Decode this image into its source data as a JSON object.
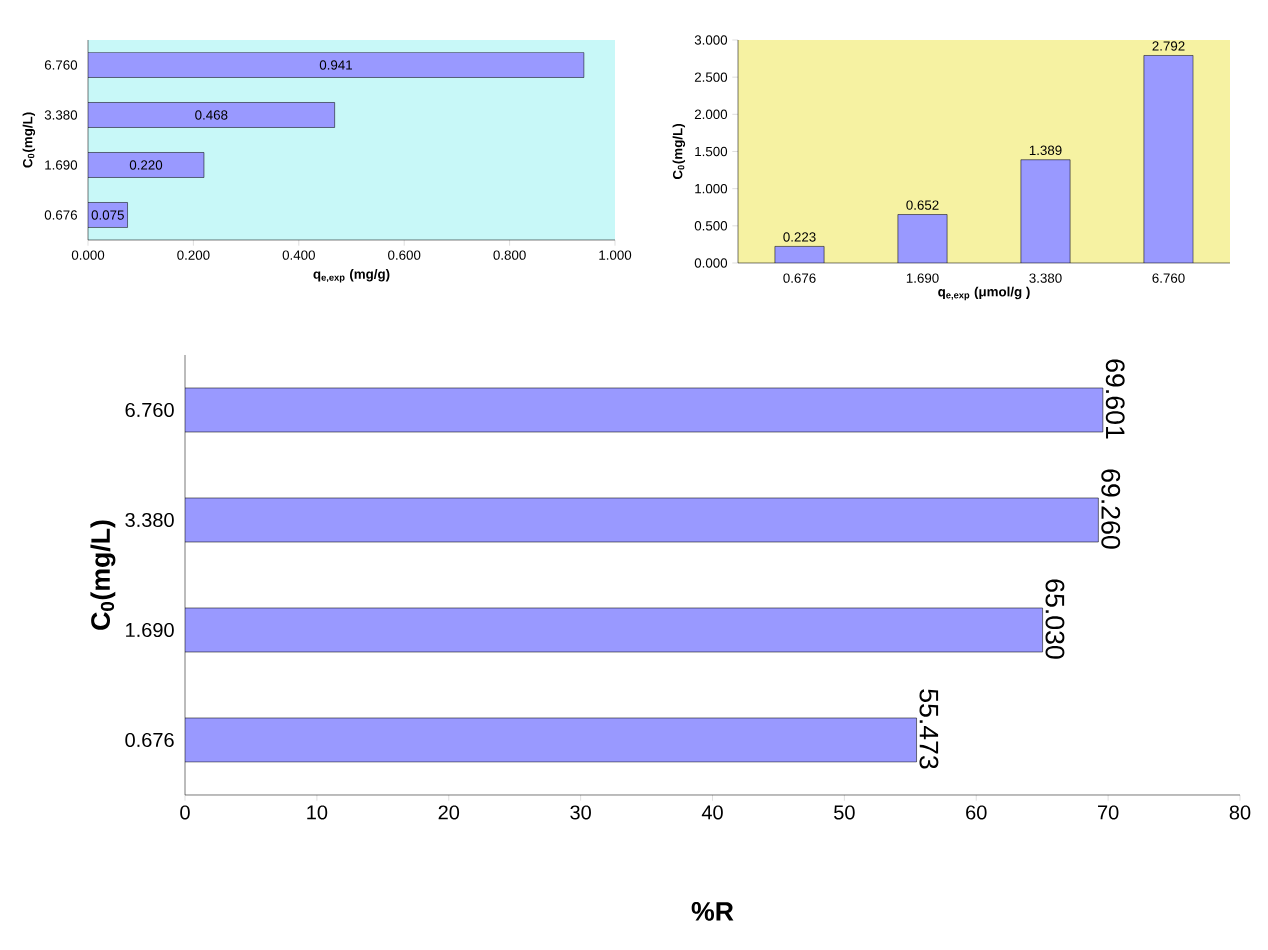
{
  "chart_data": [
    {
      "type": "bar",
      "orientation": "horizontal",
      "categories": [
        "6.760",
        "3.380",
        "1.690",
        "0.676"
      ],
      "values": [
        0.941,
        0.468,
        0.22,
        0.075
      ],
      "value_labels": [
        "0.941",
        "0.468",
        "0.220",
        "0.075"
      ],
      "color": "#9999ff",
      "xlim": [
        0,
        1
      ],
      "xticks": [
        {
          "value": 0,
          "label": "0.000"
        },
        {
          "value": 0.2,
          "label": "0.200"
        },
        {
          "value": 0.4,
          "label": "0.400"
        },
        {
          "value": 0.6,
          "label": "0.600"
        },
        {
          "value": 0.8,
          "label": "0.800"
        },
        {
          "value": 1,
          "label": "1.000"
        }
      ],
      "xlabel": "q$_{e,exp}$ (mg/g)",
      "ylabel": "C$_{0}$(mg/L)"
    },
    {
      "type": "bar",
      "categories": [
        "0.676",
        "1.690",
        "3.380",
        "6.760"
      ],
      "values": [
        0.223,
        0.652,
        1.389,
        2.792
      ],
      "value_labels": [
        "0.223",
        "0.652",
        "1.389",
        "2.792"
      ],
      "color": "#9999ff",
      "ylim": [
        0,
        3
      ],
      "yticks": [
        {
          "value": 0,
          "label": "0.000"
        },
        {
          "value": 0.5,
          "label": "0.500"
        },
        {
          "value": 1,
          "label": "1.000"
        },
        {
          "value": 1.5,
          "label": "1.500"
        },
        {
          "value": 2,
          "label": "2.000"
        },
        {
          "value": 2.5,
          "label": "2.500"
        },
        {
          "value": 3,
          "label": "3.000"
        }
      ],
      "xlabel": "q$_{e,exp}$ (μmol/g )",
      "ylabel": "C$_{0}$(mg/L)"
    },
    {
      "type": "bar",
      "orientation": "horizontal",
      "categories": [
        "6.760",
        "3.380",
        "1.690",
        "0.676"
      ],
      "values": [
        69.601,
        69.26,
        65.03,
        55.473
      ],
      "value_labels": [
        "69.601",
        "69.260",
        "65.030",
        "55.473"
      ],
      "color": "#9999ff",
      "xlim": [
        0,
        80
      ],
      "xticks": [
        0,
        10,
        20,
        30,
        40,
        50,
        60,
        70,
        80
      ],
      "xlabel": "%R",
      "ylabel": "C$_{0}$(mg/L)"
    }
  ]
}
